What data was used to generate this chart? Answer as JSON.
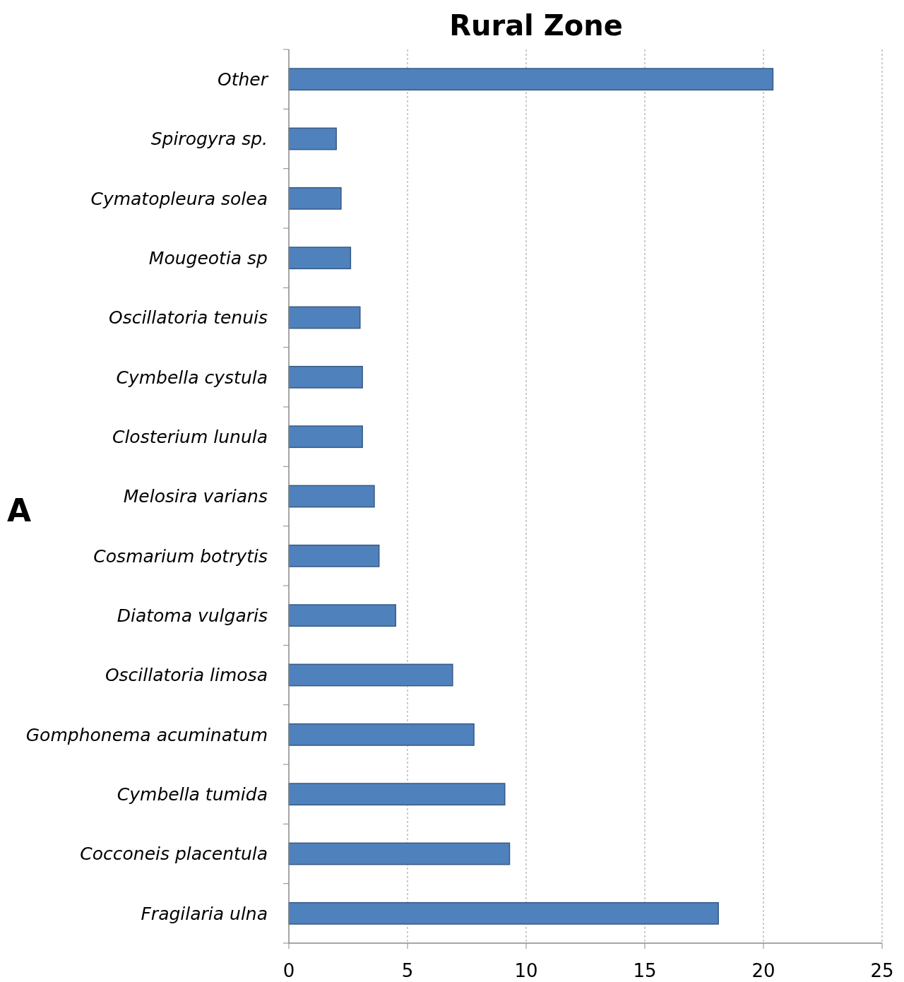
{
  "chart_data": {
    "type": "bar",
    "orientation": "horizontal",
    "title": "Rural Zone",
    "categories": [
      "Other",
      "Spirogyra sp.",
      "Cymatopleura solea",
      "Mougeotia sp",
      "Oscillatoria tenuis",
      "Cymbella cystula",
      "Closterium lunula",
      "Melosira varians",
      "Cosmarium botrytis",
      "Diatoma vulgaris",
      "Oscillatoria limosa",
      "Gomphonema acuminatum",
      "Cymbella tumida",
      "Cocconeis placentula",
      "Fragilaria ulna"
    ],
    "values": [
      20.4,
      2.0,
      2.2,
      2.6,
      3.0,
      3.1,
      3.1,
      3.6,
      3.8,
      4.5,
      6.9,
      7.8,
      9.1,
      9.3,
      18.1
    ],
    "color": "#4f81bd",
    "xlim": [
      0,
      25
    ],
    "xticks": [
      0,
      5,
      10,
      15,
      20,
      25
    ],
    "grid": "x",
    "annotations": [
      "A"
    ]
  }
}
